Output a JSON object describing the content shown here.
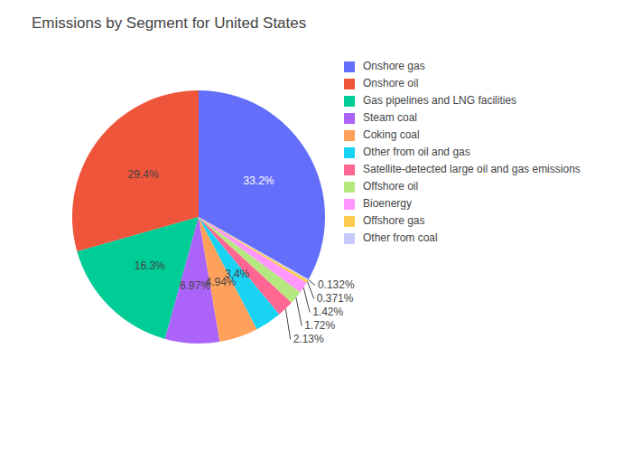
{
  "chart_data": {
    "type": "pie",
    "title": "Emissions by Segment for United States",
    "categories": [
      "Onshore gas",
      "Onshore oil",
      "Gas pipelines and LNG facilities",
      "Steam coal",
      "Coking coal",
      "Other from oil and gas",
      "Satellite-detected large oil and gas emissions",
      "Offshore oil",
      "Bioenergy",
      "Offshore gas",
      "Other from coal"
    ],
    "values": [
      33.2,
      29.4,
      16.3,
      6.97,
      4.94,
      3.4,
      2.13,
      1.72,
      1.42,
      0.371,
      0.132
    ],
    "value_labels": [
      "33.2%",
      "29.4%",
      "16.3%",
      "6.97%",
      "4.94%",
      "3.4%",
      "2.13%",
      "1.72%",
      "1.42%",
      "0.371%",
      "0.132%"
    ],
    "colors": [
      "#636efa",
      "#EF553B",
      "#00cc96",
      "#ab63fa",
      "#FFA15A",
      "#19d3f3",
      "#FF6692",
      "#B6E880",
      "#FF97FF",
      "#FECB52",
      "#c6cafc"
    ],
    "data_labels": true,
    "legend": "top-right"
  }
}
